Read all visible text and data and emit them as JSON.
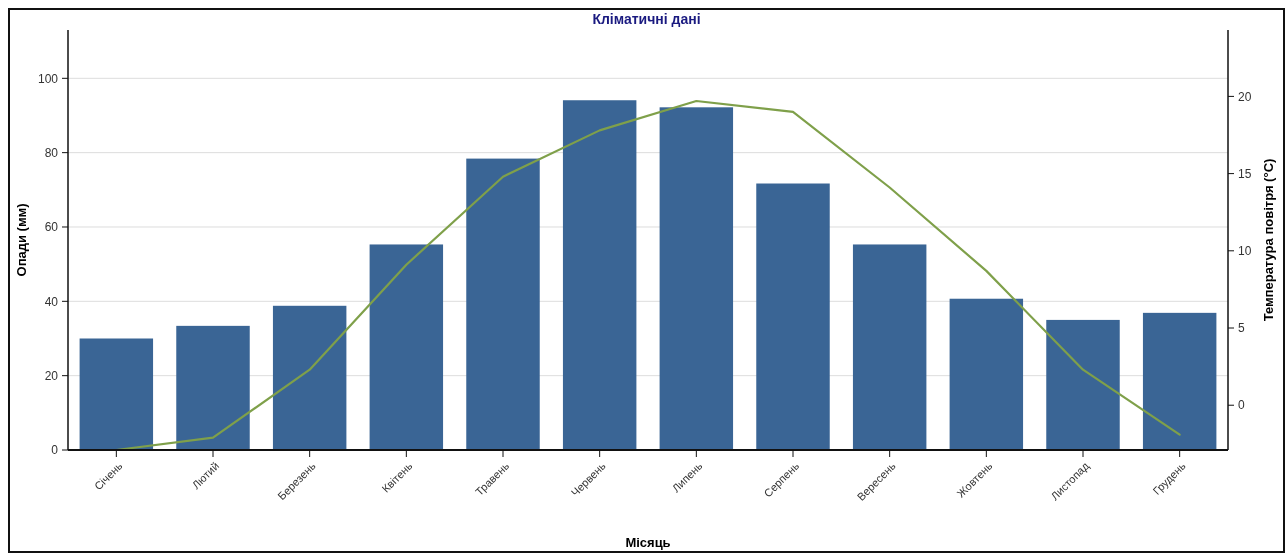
{
  "chart_data": {
    "type": "bar",
    "title": "Кліматичні дані",
    "xlabel": "Місяць",
    "ylabel": "Опади (мм)",
    "y2label": "Температура повітря (°C)",
    "categories": [
      "Січень",
      "Лютий",
      "Березень",
      "Квітень",
      "Травень",
      "Червень",
      "Липень",
      "Серпень",
      "Вересень",
      "Жовтень",
      "Листопад",
      "Грудень"
    ],
    "series": [
      {
        "color": "#3a6595",
        "values": [
          30,
          33.4,
          38.8,
          55.3,
          78.4,
          94.1,
          92.2,
          71.7,
          55.3,
          40.7,
          35,
          36.9
        ]
      },
      {
        "type": "line",
        "axis": "y2",
        "color": "#7fa04a",
        "values": [
          -2.9,
          -2.1,
          2.3,
          9.1,
          14.8,
          17.8,
          19.7,
          19,
          14.1,
          8.7,
          2.3,
          -1.9
        ]
      }
    ],
    "ylim": [
      0,
      113
    ],
    "yticks": [
      0,
      20,
      40,
      60,
      80,
      100
    ],
    "y2lim": [
      -2.9,
      24.3
    ],
    "y2ticks": [
      0,
      5,
      10,
      15,
      20
    ],
    "grid": "y"
  }
}
